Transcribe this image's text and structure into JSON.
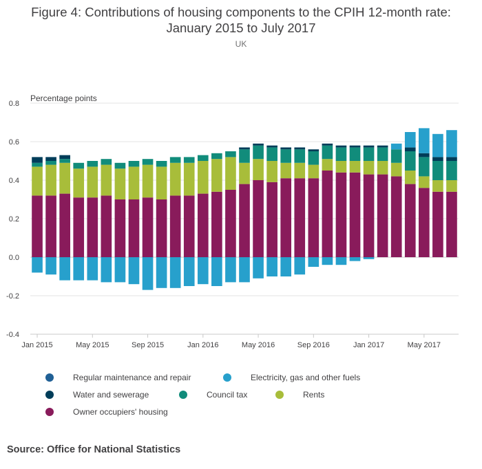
{
  "header": {
    "title_line1": "Figure 4: Contributions of housing components to the CPIH 12-month rate:",
    "title_line2": "January 2015 to July 2017",
    "subtitle": "UK"
  },
  "source": "Source: Office for National Statistics",
  "chart_data": {
    "type": "bar",
    "stacked": true,
    "ylabel": "Percentage points",
    "ylim": [
      -0.4,
      0.8
    ],
    "yticks": [
      "0.8",
      "0.6",
      "0.4",
      "0.2",
      "0.0",
      "-0.2",
      "-0.4"
    ],
    "grid": true,
    "legend_position": "bottom",
    "categories": [
      "Jan 2015",
      "Feb 2015",
      "Mar 2015",
      "Apr 2015",
      "May 2015",
      "Jun 2015",
      "Jul 2015",
      "Aug 2015",
      "Sep 2015",
      "Oct 2015",
      "Nov 2015",
      "Dec 2015",
      "Jan 2016",
      "Feb 2016",
      "Mar 2016",
      "Apr 2016",
      "May 2016",
      "Jun 2016",
      "Jul 2016",
      "Aug 2016",
      "Sep 2016",
      "Oct 2016",
      "Nov 2016",
      "Dec 2016",
      "Jan 2017",
      "Feb 2017",
      "Mar 2017",
      "Apr 2017",
      "May 2017",
      "Jun 2017",
      "Jul 2017"
    ],
    "xtick_labels": [
      {
        "index": 0,
        "label": "Jan 2015"
      },
      {
        "index": 4,
        "label": "May 2015"
      },
      {
        "index": 8,
        "label": "Sep 2015"
      },
      {
        "index": 12,
        "label": "Jan 2016"
      },
      {
        "index": 16,
        "label": "May 2016"
      },
      {
        "index": 20,
        "label": "Sep 2016"
      },
      {
        "index": 24,
        "label": "Jan 2017"
      },
      {
        "index": 28,
        "label": "May 2017"
      }
    ],
    "series": [
      {
        "name": "Owner occupiers' housing",
        "color": "#891b5b",
        "values": [
          0.32,
          0.32,
          0.33,
          0.31,
          0.31,
          0.32,
          0.3,
          0.3,
          0.31,
          0.3,
          0.32,
          0.32,
          0.33,
          0.34,
          0.35,
          0.38,
          0.4,
          0.39,
          0.41,
          0.41,
          0.41,
          0.45,
          0.44,
          0.44,
          0.43,
          0.43,
          0.42,
          0.38,
          0.36,
          0.34,
          0.34
        ]
      },
      {
        "name": "Rents",
        "color": "#a8bd3a",
        "values": [
          0.15,
          0.16,
          0.16,
          0.15,
          0.16,
          0.16,
          0.16,
          0.17,
          0.17,
          0.17,
          0.17,
          0.17,
          0.17,
          0.17,
          0.17,
          0.11,
          0.11,
          0.11,
          0.08,
          0.08,
          0.07,
          0.06,
          0.06,
          0.06,
          0.07,
          0.07,
          0.07,
          0.07,
          0.06,
          0.06,
          0.06
        ]
      },
      {
        "name": "Council tax",
        "color": "#118c7b",
        "values": [
          0.02,
          0.02,
          0.02,
          0.03,
          0.03,
          0.03,
          0.03,
          0.03,
          0.03,
          0.03,
          0.03,
          0.03,
          0.03,
          0.03,
          0.03,
          0.07,
          0.07,
          0.07,
          0.07,
          0.07,
          0.07,
          0.07,
          0.07,
          0.07,
          0.07,
          0.07,
          0.07,
          0.1,
          0.1,
          0.1,
          0.1
        ]
      },
      {
        "name": "Water and sewerage",
        "color": "#003d59",
        "values": [
          0.03,
          0.02,
          0.02,
          0.0,
          0.0,
          0.0,
          0.0,
          0.0,
          0.0,
          0.0,
          0.0,
          0.0,
          0.0,
          0.0,
          0.0,
          0.01,
          0.01,
          0.01,
          0.01,
          0.01,
          0.01,
          0.01,
          0.01,
          0.01,
          0.01,
          0.01,
          0.0,
          0.02,
          0.02,
          0.02,
          0.02
        ]
      },
      {
        "name": "Regular maintenance and repair",
        "color": "#206095",
        "values": [
          0,
          0,
          0,
          0,
          0,
          0,
          0,
          0,
          0,
          0,
          0,
          0,
          0,
          0,
          0,
          0,
          0,
          0,
          0,
          0,
          0,
          0,
          0,
          0,
          0,
          0,
          0,
          0,
          0,
          0,
          0
        ]
      },
      {
        "name": "Electricity, gas and other fuels",
        "color": "#27a0cc",
        "values": [
          -0.08,
          -0.09,
          -0.12,
          -0.12,
          -0.12,
          -0.13,
          -0.13,
          -0.14,
          -0.17,
          -0.16,
          -0.16,
          -0.15,
          -0.14,
          -0.15,
          -0.13,
          -0.13,
          -0.11,
          -0.1,
          -0.1,
          -0.09,
          -0.05,
          -0.04,
          -0.04,
          -0.02,
          -0.01,
          0.0,
          0.03,
          0.08,
          0.13,
          0.12,
          0.14
        ]
      }
    ]
  },
  "legend": {
    "items": [
      {
        "label": "Regular maintenance and repair",
        "color": "#206095"
      },
      {
        "label": "Electricity, gas and other fuels",
        "color": "#27a0cc"
      },
      {
        "label": "Water and sewerage",
        "color": "#003d59"
      },
      {
        "label": "Council tax",
        "color": "#118c7b"
      },
      {
        "label": "Rents",
        "color": "#a8bd3a"
      },
      {
        "label": "Owner occupiers' housing",
        "color": "#891b5b"
      }
    ]
  }
}
